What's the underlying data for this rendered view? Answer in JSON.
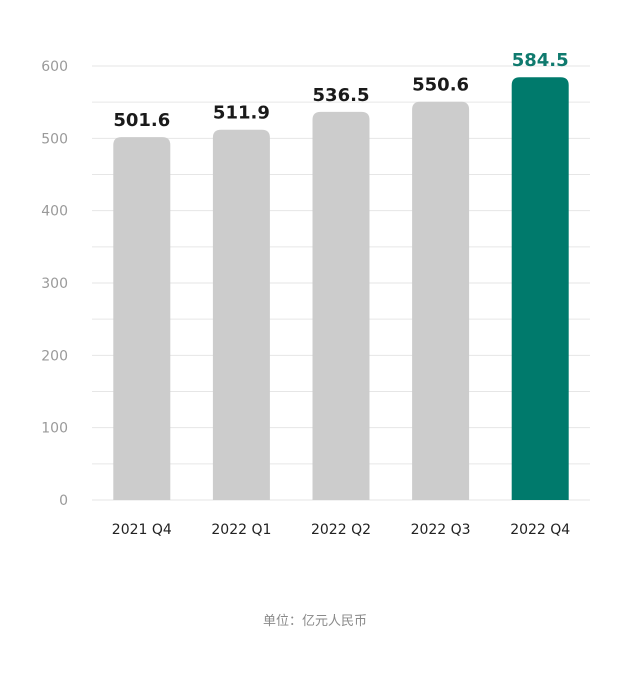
{
  "chart_data": {
    "type": "bar",
    "categories": [
      "2021 Q4",
      "2022 Q1",
      "2022 Q2",
      "2022 Q3",
      "2022 Q4"
    ],
    "values": [
      501.6,
      511.9,
      536.5,
      550.6,
      584.5
    ],
    "data_labels": [
      "501.6",
      "511.9",
      "536.5",
      "550.6",
      "584.5"
    ],
    "ylim": [
      0,
      600
    ],
    "yticks": [
      0,
      100,
      200,
      300,
      400,
      500,
      600
    ],
    "ytick_labels": [
      "0",
      "100",
      "200",
      "300",
      "400",
      "500",
      "600"
    ],
    "grid": true,
    "legend": "none",
    "highlight_index": 4,
    "colors": {
      "bar": "#cccccc",
      "highlight": "#007a6c",
      "label": "#1a1a1a",
      "highlight_label": "#0f7a6e",
      "grid": "#e6e6e6"
    },
    "unit_note": "单位：亿元人民币"
  }
}
